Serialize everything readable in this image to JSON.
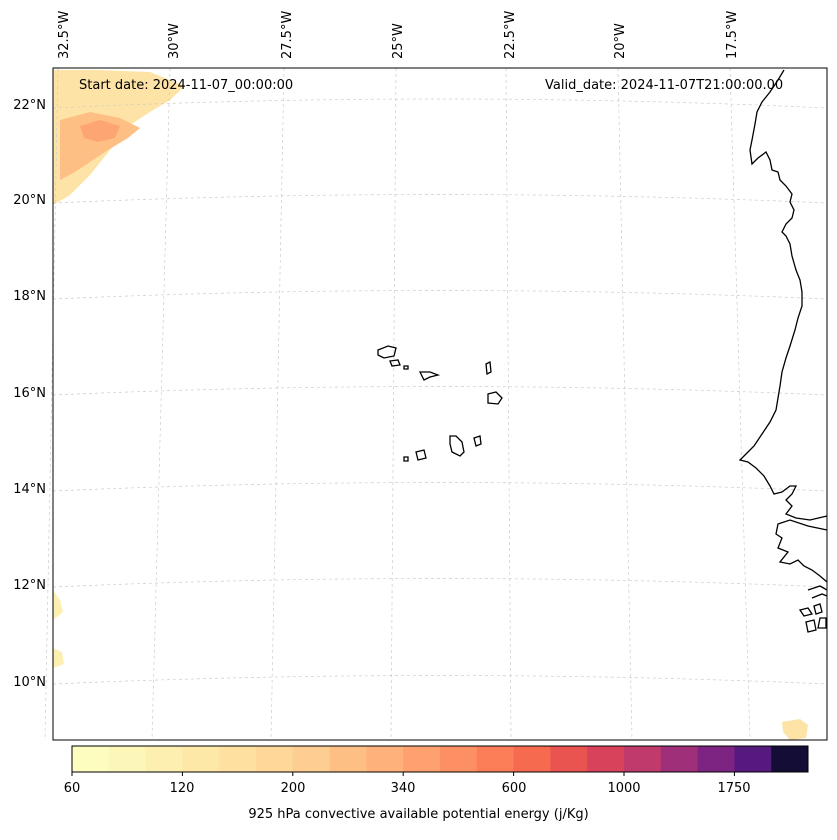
{
  "map": {
    "start_date": "Start date: 2024-11-07_00:00:00",
    "valid_date": "Valid_date: 2024-11-07T21:00:00.00",
    "lon_labels": [
      "32.5°W",
      "30°W",
      "27.5°W",
      "25°W",
      "22.5°W",
      "20°W",
      "17.5°W"
    ],
    "lat_labels": [
      "22°N",
      "20°N",
      "18°N",
      "16°N",
      "14°N",
      "12°N",
      "10°N"
    ]
  },
  "colorbar": {
    "label": "925 hPa convective available potential energy (j/Kg)",
    "tick_labels": [
      "60",
      "120",
      "200",
      "340",
      "600",
      "1000",
      "1750"
    ],
    "colors": [
      "#fcfdbf",
      "#fcf6b8",
      "#fdefb0",
      "#fde8a8",
      "#fee0a0",
      "#fed799",
      "#fecd92",
      "#febf85",
      "#feb17a",
      "#fea16e",
      "#fd9062",
      "#fb7e58",
      "#f66b50",
      "#ea5450",
      "#d8425b",
      "#c03a6b",
      "#a02f7a",
      "#7d2482",
      "#561a7e",
      "#140e36"
    ]
  }
}
